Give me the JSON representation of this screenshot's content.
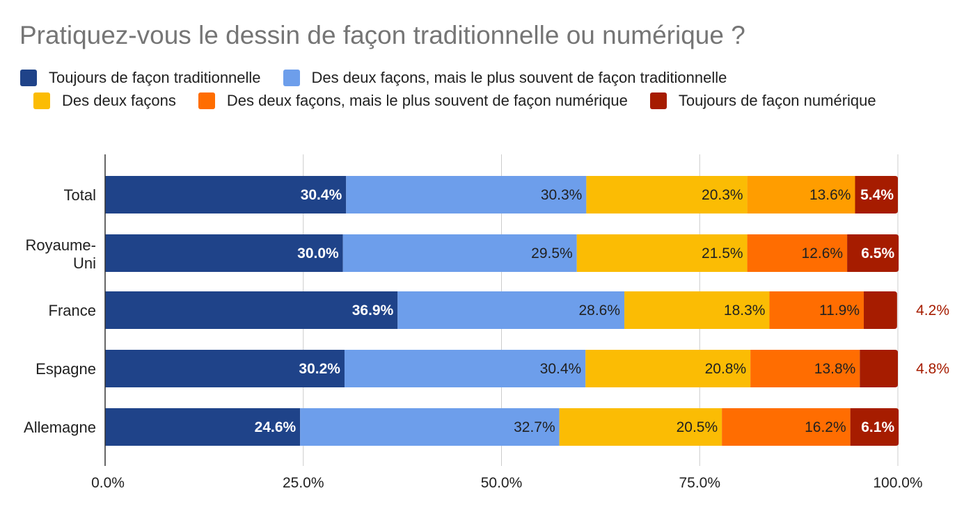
{
  "chart_data": {
    "type": "bar",
    "orientation": "horizontal",
    "stacked": true,
    "title": "Pratiquez-vous le dessin de façon traditionnelle ou numérique ?",
    "xlabel": "",
    "ylabel": "",
    "xlim": [
      0,
      100
    ],
    "x_ticks": [
      "0.0%",
      "25.0%",
      "50.0%",
      "75.0%",
      "100.0%"
    ],
    "grid": true,
    "legend_position": "top",
    "categories": [
      "Total",
      "Royaume-Uni",
      "France",
      "Espagne",
      "Allemagne"
    ],
    "series": [
      {
        "name": "Toujours de façon traditionnelle",
        "color": "#1f4389",
        "label_color": "#ffffff",
        "values": [
          30.4,
          30.0,
          36.9,
          30.2,
          24.6
        ]
      },
      {
        "name": "Des deux façons, mais le plus souvent de façon traditionnelle",
        "color": "#6d9eeb",
        "label_color": "#212121",
        "values": [
          30.3,
          29.5,
          28.6,
          30.4,
          32.7
        ]
      },
      {
        "name": "Des deux façons",
        "color": "#fbbc04",
        "label_color": "#212121",
        "values": [
          20.3,
          21.5,
          18.3,
          20.8,
          20.5
        ]
      },
      {
        "name": "Des deux façons, mais le plus souvent de façon numérique",
        "color": "#ff6d01",
        "label_color": "#212121",
        "values": [
          13.6,
          12.6,
          11.9,
          13.8,
          16.2
        ]
      },
      {
        "name": "Toujours de façon numérique",
        "color": "#a61c00",
        "label_color": "#ffffff",
        "values": [
          5.4,
          6.5,
          4.2,
          4.8,
          6.1
        ]
      }
    ],
    "total_segment_color": "#ff9d00",
    "outside_label_color": "#a61c00",
    "outside_label_rows": [
      2,
      3
    ]
  }
}
